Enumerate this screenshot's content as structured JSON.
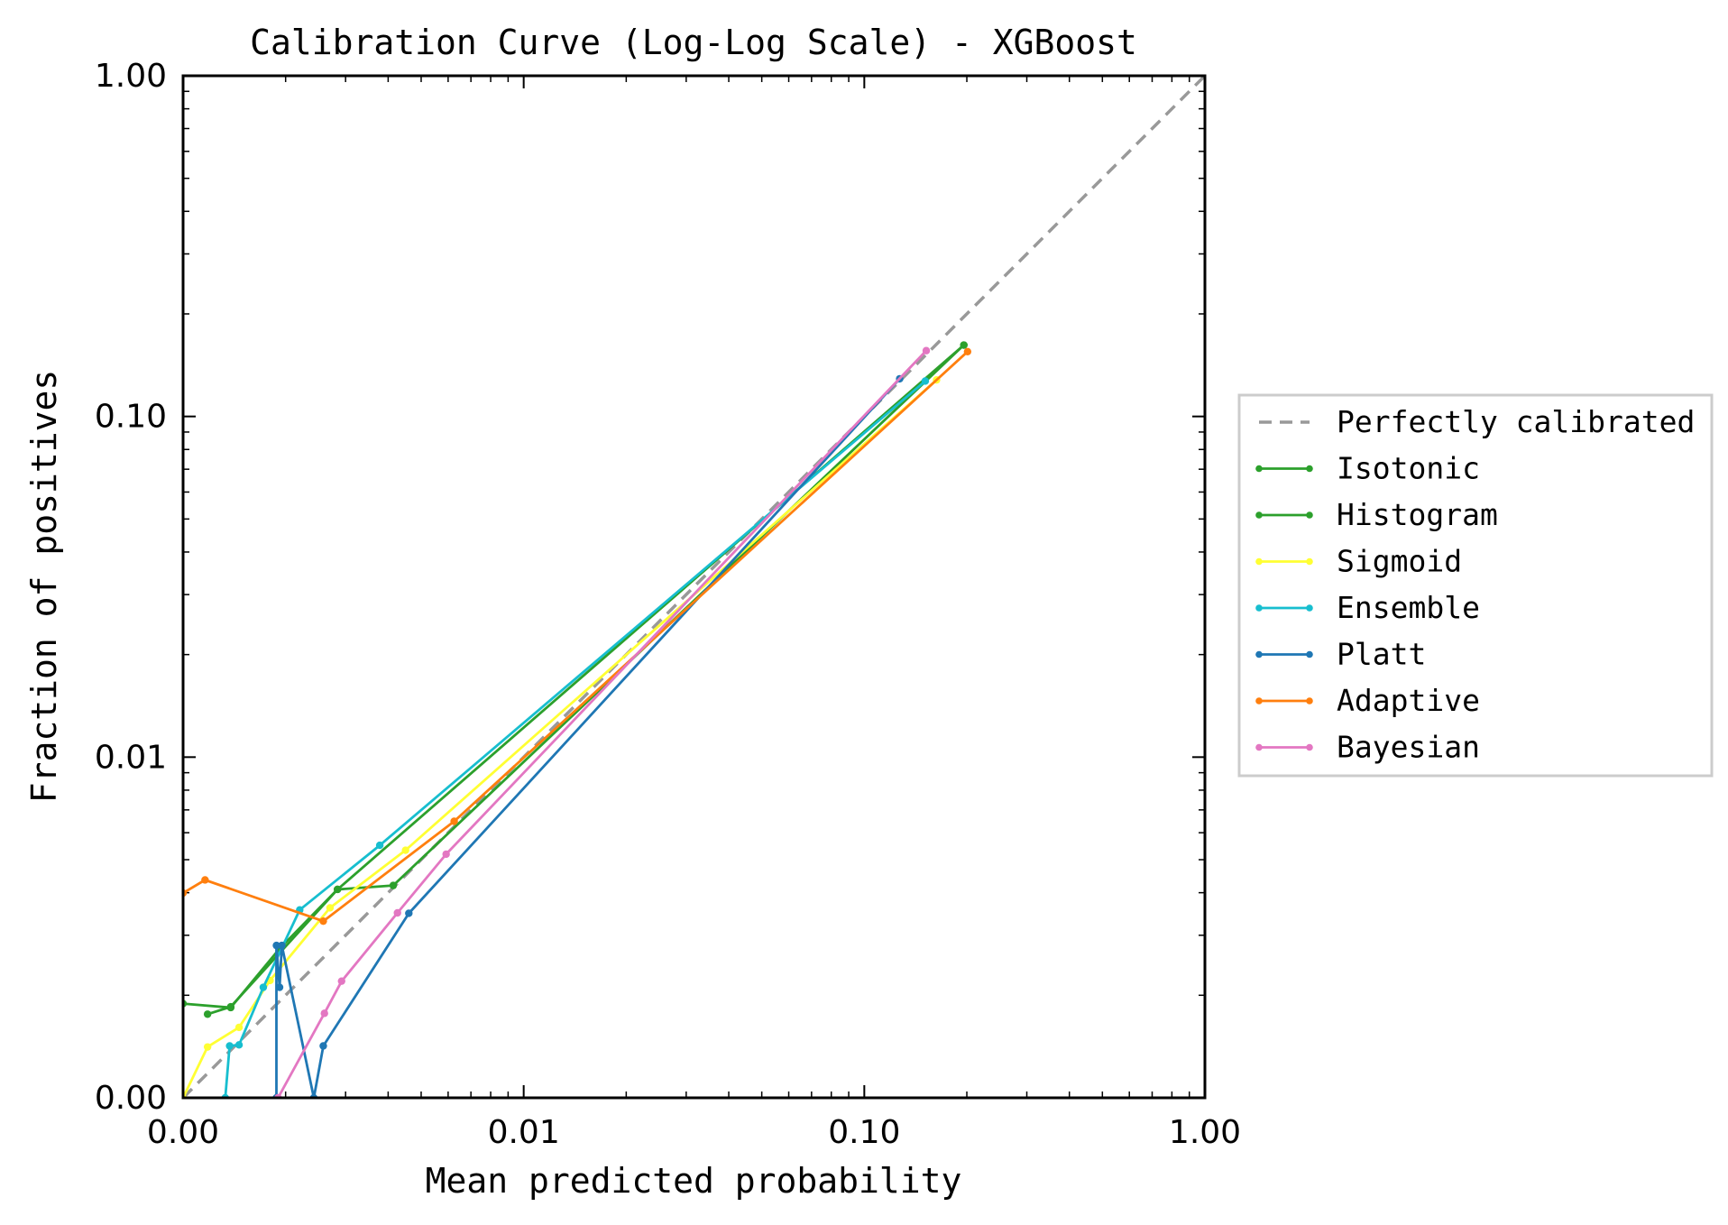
{
  "chart_data": {
    "type": "line",
    "title": "Calibration Curve (Log-Log Scale) - XGBoost",
    "xlabel": "Mean predicted probability",
    "ylabel": "Fraction of positives",
    "xscale": "log",
    "yscale": "log",
    "xlim": [
      0.001,
      1.0
    ],
    "ylim": [
      0.001,
      1.0
    ],
    "xticks": [
      0.001,
      0.01,
      0.1,
      1.0
    ],
    "xtick_labels": [
      "0.00",
      "0.01",
      "0.10",
      "1.00"
    ],
    "yticks": [
      0.001,
      0.01,
      0.1,
      1.0
    ],
    "ytick_labels": [
      "0.00",
      "0.01",
      "0.10",
      "1.00"
    ],
    "grid": false,
    "legend_position": "outside-right",
    "reference": {
      "name": "Perfectly calibrated",
      "color": "#999999",
      "style": "dashed",
      "x": [
        0.001,
        1.0
      ],
      "y": [
        0.001,
        1.0
      ]
    },
    "series": [
      {
        "name": "Isotonic",
        "color": "#2ca02c",
        "x": [
          0.00118,
          0.00138,
          0.00284,
          0.00414,
          0.196
        ],
        "y": [
          0.00176,
          0.00185,
          0.00409,
          0.0042,
          0.162
        ]
      },
      {
        "name": "Histogram",
        "color": "#2ca02c",
        "x": [
          0.001,
          0.00138,
          0.00192,
          0.00284,
          0.196
        ],
        "y": [
          0.00189,
          0.00184,
          0.00274,
          0.00409,
          0.162
        ]
      },
      {
        "name": "Sigmoid",
        "color": "#ffff33",
        "x": [
          0.001,
          0.00118,
          0.00146,
          0.0018,
          0.0027,
          0.0045,
          0.163
        ],
        "y": [
          0.001,
          0.00141,
          0.00161,
          0.00221,
          0.00361,
          0.00533,
          0.128
        ]
      },
      {
        "name": "Ensemble",
        "color": "#17becf",
        "x": [
          0.00133,
          0.00137,
          0.00146,
          0.00172,
          0.0022,
          0.00378,
          0.151
        ],
        "y": [
          0.001,
          0.00142,
          0.00143,
          0.00211,
          0.00356,
          0.00551,
          0.127
        ]
      },
      {
        "name": "Platt",
        "color": "#1f77b4",
        "x": [
          0.00188,
          0.00188,
          0.00192,
          0.00195,
          0.00242,
          0.00258,
          0.0046,
          0.127
        ],
        "y": [
          0.001,
          0.0028,
          0.00211,
          0.0028,
          0.001,
          0.00142,
          0.00348,
          0.129
        ]
      },
      {
        "name": "Adaptive",
        "color": "#ff7f0e",
        "x": [
          0.001,
          0.00116,
          0.00258,
          0.00625,
          0.201
        ],
        "y": [
          0.00399,
          0.00436,
          0.0033,
          0.00648,
          0.155
        ]
      },
      {
        "name": "Bayesian",
        "color": "#e377c2",
        "x": [
          0.0019,
          0.0026,
          0.00292,
          0.00426,
          0.00592,
          0.152
        ],
        "y": [
          0.001,
          0.00177,
          0.0022,
          0.00349,
          0.00519,
          0.156
        ]
      }
    ]
  }
}
